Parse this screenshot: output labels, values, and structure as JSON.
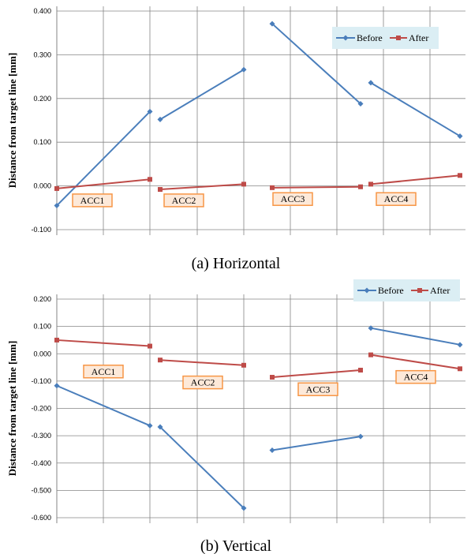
{
  "captions": [
    "(a)  Horizontal",
    "(b)  Vertical"
  ],
  "colors": {
    "before": "#4a7ebb",
    "after": "#be4b48",
    "legend_bg": "#dbeef4",
    "acc_fill": "#fde9d9",
    "acc_border": "#f79646",
    "grid": "#868686"
  },
  "chart_data": [
    {
      "type": "line",
      "title": "",
      "ylabel": "Distance from target line  [mm]",
      "ylim": [
        -0.1,
        0.4
      ],
      "yticks": [
        "0.400",
        "0.300",
        "0.200",
        "0.100",
        "0.000",
        "-0.100"
      ],
      "legend": [
        "Before",
        "After"
      ],
      "legend_position": "top-right",
      "series": [
        {
          "name": "Before",
          "segments": [
            [
              {
                "x": 0,
                "y": -0.045
              },
              {
                "x": 1,
                "y": 0.17
              }
            ],
            [
              {
                "x": 1,
                "y": 0.152
              },
              {
                "x": 2,
                "y": 0.266
              }
            ],
            [
              {
                "x": 2,
                "y": 0.371
              },
              {
                "x": 3,
                "y": 0.188
              }
            ],
            [
              {
                "x": 3,
                "y": 0.236
              },
              {
                "x": 4,
                "y": 0.114
              }
            ]
          ]
        },
        {
          "name": "After",
          "segments": [
            [
              {
                "x": 0,
                "y": -0.006
              },
              {
                "x": 1,
                "y": 0.015
              }
            ],
            [
              {
                "x": 1,
                "y": -0.008
              },
              {
                "x": 2,
                "y": 0.004
              }
            ],
            [
              {
                "x": 2,
                "y": -0.004
              },
              {
                "x": 3,
                "y": -0.002
              }
            ],
            [
              {
                "x": 3,
                "y": 0.004
              },
              {
                "x": 4,
                "y": 0.024
              }
            ]
          ]
        }
      ],
      "annotations": [
        {
          "text": "ACC1",
          "segment": 0,
          "y": -0.033
        },
        {
          "text": "ACC2",
          "segment": 1,
          "y": -0.033
        },
        {
          "text": "ACC3",
          "segment": 2,
          "y": -0.03
        },
        {
          "text": "ACC4",
          "segment": 3,
          "y": -0.03
        }
      ]
    },
    {
      "type": "line",
      "title": "",
      "ylabel": "Distance from target line  [mm]",
      "ylim": [
        -0.6,
        0.2
      ],
      "yticks": [
        "0.200",
        "0.100",
        "0.000",
        "-0.100",
        "-0.200",
        "-0.300",
        "-0.400",
        "-0.500",
        "-0.600"
      ],
      "legend": [
        "Before",
        "After"
      ],
      "legend_position": "top-right",
      "series": [
        {
          "name": "Before",
          "segments": [
            [
              {
                "x": 0,
                "y": -0.117
              },
              {
                "x": 1,
                "y": -0.263
              }
            ],
            [
              {
                "x": 1,
                "y": -0.268
              },
              {
                "x": 2,
                "y": -0.565
              }
            ],
            [
              {
                "x": 2,
                "y": -0.353
              },
              {
                "x": 3,
                "y": -0.303
              }
            ],
            [
              {
                "x": 3,
                "y": 0.094
              },
              {
                "x": 4,
                "y": 0.033
              }
            ]
          ]
        },
        {
          "name": "After",
          "segments": [
            [
              {
                "x": 0,
                "y": 0.05
              },
              {
                "x": 1,
                "y": 0.028
              }
            ],
            [
              {
                "x": 1,
                "y": -0.023
              },
              {
                "x": 2,
                "y": -0.042
              }
            ],
            [
              {
                "x": 2,
                "y": -0.086
              },
              {
                "x": 3,
                "y": -0.06
              }
            ],
            [
              {
                "x": 3,
                "y": -0.004
              },
              {
                "x": 4,
                "y": -0.055
              }
            ]
          ]
        }
      ],
      "annotations": [
        {
          "text": "ACC1",
          "segment": 0,
          "y": -0.065
        },
        {
          "text": "ACC2",
          "segment": 1,
          "y": -0.105
        },
        {
          "text": "ACC3",
          "segment": 2,
          "y": -0.13
        },
        {
          "text": "ACC4",
          "segment": 3,
          "y": -0.085
        }
      ]
    }
  ]
}
